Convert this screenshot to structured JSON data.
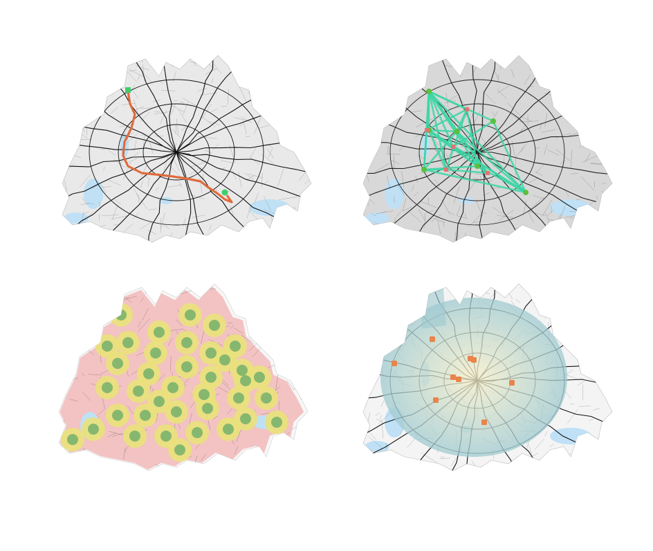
{
  "figure": {
    "panels": [
      {
        "id": "route",
        "description_tag": "shortest-path",
        "colors": {
          "route": "#e06b3c",
          "endpoints": "#3ccf6b",
          "roads": "#111111",
          "minor_roads": "#9a9a9a",
          "water": "#bfe0f5",
          "land": "#e9e9e9"
        }
      },
      {
        "id": "od-network",
        "description_tag": "origin-destination-edges",
        "colors": {
          "edges": "#3ad6a5",
          "green_nodes": "#5bbf3f",
          "red_nodes": "#e57373",
          "roads": "#222222",
          "minor_roads": "#8a8a8a",
          "water": "#bfe0f5",
          "land": "#d8d8d8"
        },
        "node_count_green": 7,
        "node_count_red": 5
      },
      {
        "id": "isochrones",
        "description_tag": "service-areas",
        "colors": {
          "outer": "#f2b9b9",
          "middle": "#e9e27a",
          "inner": "#7bb36b",
          "roads": "#555555",
          "water": "#bfe0f5"
        },
        "center_count": 38
      },
      {
        "id": "accessibility",
        "description_tag": "accessibility-heatmap",
        "colors": {
          "fill_low": "#9fcad0",
          "fill_high": "#f7f0c9",
          "markers": "#e9844a",
          "roads": "#111111",
          "water": "#bfe0f5"
        },
        "marker_count": 9
      }
    ]
  }
}
